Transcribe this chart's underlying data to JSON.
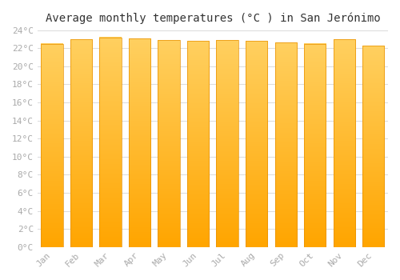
{
  "title": "Average monthly temperatures (°C ) in San Jerónimo",
  "months": [
    "Jan",
    "Feb",
    "Mar",
    "Apr",
    "May",
    "Jun",
    "Jul",
    "Aug",
    "Sep",
    "Oct",
    "Nov",
    "Dec"
  ],
  "values": [
    22.5,
    23.0,
    23.2,
    23.1,
    22.9,
    22.8,
    22.9,
    22.8,
    22.6,
    22.5,
    23.0,
    22.3
  ],
  "bar_color_top": "#FFD060",
  "bar_color_bottom": "#FFA500",
  "ylim": [
    0,
    24
  ],
  "yticks": [
    0,
    2,
    4,
    6,
    8,
    10,
    12,
    14,
    16,
    18,
    20,
    22,
    24
  ],
  "ytick_labels": [
    "0°C",
    "2°C",
    "4°C",
    "6°C",
    "8°C",
    "10°C",
    "12°C",
    "14°C",
    "16°C",
    "18°C",
    "20°C",
    "22°C",
    "24°C"
  ],
  "background_color": "#ffffff",
  "grid_color": "#dddddd",
  "bar_edge_color": "#E89000",
  "title_fontsize": 10,
  "tick_fontsize": 8,
  "tick_color": "#aaaaaa"
}
